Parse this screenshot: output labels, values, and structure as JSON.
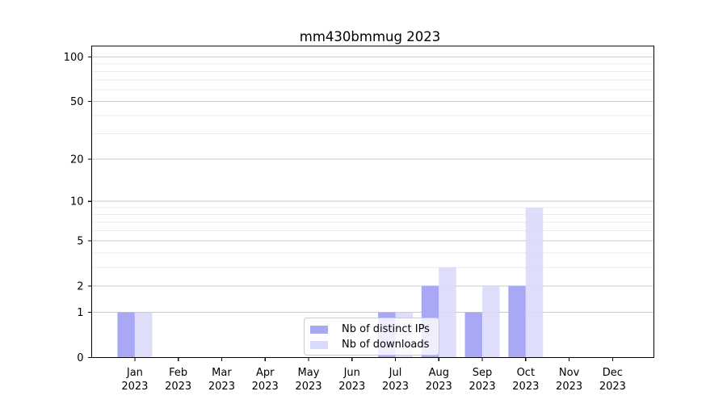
{
  "figure_title": "mm430bmmug 2023",
  "chart_data": {
    "type": "bar",
    "title": "mm430bmmug 2023",
    "categories": [
      "Jan",
      "Feb",
      "Mar",
      "Apr",
      "May",
      "Jun",
      "Jul",
      "Aug",
      "Sep",
      "Oct",
      "Nov",
      "Dec"
    ],
    "x_tick_second_line": "2023",
    "series": [
      {
        "name": "Nb of distinct IPs",
        "color": "#a8a8f5",
        "values": [
          1,
          0,
          0,
          0,
          0,
          0,
          1,
          2,
          1,
          2,
          0,
          0
        ]
      },
      {
        "name": "Nb of downloads",
        "color": "#d9d9fa",
        "values": [
          1,
          0,
          0,
          0,
          0,
          0,
          1,
          3,
          2,
          9,
          0,
          0
        ]
      }
    ],
    "y_scale": "log1p",
    "y_major_ticks": [
      0,
      1,
      2,
      5,
      10,
      20,
      50,
      100
    ],
    "y_minor_ticks": [
      3,
      4,
      6,
      7,
      8,
      9,
      30,
      40,
      60,
      70,
      80,
      90
    ],
    "ylim": [
      0,
      118
    ],
    "xlabel": "",
    "ylabel": "",
    "grid": true,
    "legend_position": "lower center"
  },
  "style": {
    "major_grid_color": "#c9c9c9",
    "minor_grid_color": "#ebebeb",
    "axis_color": "#000000",
    "text_color": "#000000",
    "background_color": "#ffffff"
  }
}
